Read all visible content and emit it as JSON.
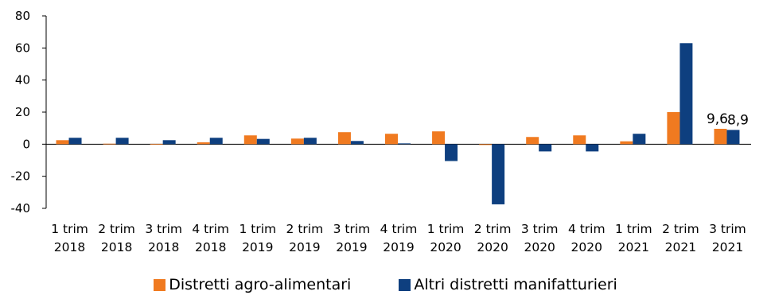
{
  "chart_data": {
    "type": "bar",
    "title": "",
    "xlabel": "",
    "ylabel": "",
    "ylim": [
      -40,
      80
    ],
    "yticks": [
      80,
      60,
      40,
      20,
      0,
      -20,
      -40
    ],
    "categories": [
      [
        "1 trim",
        "2018"
      ],
      [
        "2 trim",
        "2018"
      ],
      [
        "3 trim",
        "2018"
      ],
      [
        "4 trim",
        "2018"
      ],
      [
        "1 trim",
        "2019"
      ],
      [
        "2 trim",
        "2019"
      ],
      [
        "3 trim",
        "2019"
      ],
      [
        "4 trim",
        "2019"
      ],
      [
        "1 trim",
        "2020"
      ],
      [
        "2 trim",
        "2020"
      ],
      [
        "3 trim",
        "2020"
      ],
      [
        "4 trim",
        "2020"
      ],
      [
        "1 trim",
        "2021"
      ],
      [
        "2 trim",
        "2021"
      ],
      [
        "3 trim",
        "2021"
      ]
    ],
    "series": [
      {
        "name": "Distretti agro-alimentari",
        "color": "#F07A20",
        "values": [
          2.5,
          0.3,
          0.2,
          1.2,
          5.5,
          3.5,
          7.5,
          6.5,
          8.0,
          -0.5,
          4.5,
          5.5,
          1.8,
          20.0,
          9.6
        ]
      },
      {
        "name": "Altri distretti manifatturieri",
        "color": "#0E3F7F",
        "values": [
          4.0,
          4.0,
          2.5,
          4.0,
          3.3,
          4.0,
          2.0,
          0.5,
          -10.5,
          -37.5,
          -4.5,
          -4.5,
          6.5,
          63.0,
          8.9
        ]
      }
    ],
    "data_labels": [
      {
        "series": 0,
        "index": 14,
        "text": "9,6"
      },
      {
        "series": 1,
        "index": 14,
        "text": "8,9"
      }
    ],
    "grid": false,
    "legend_position": "bottom"
  }
}
